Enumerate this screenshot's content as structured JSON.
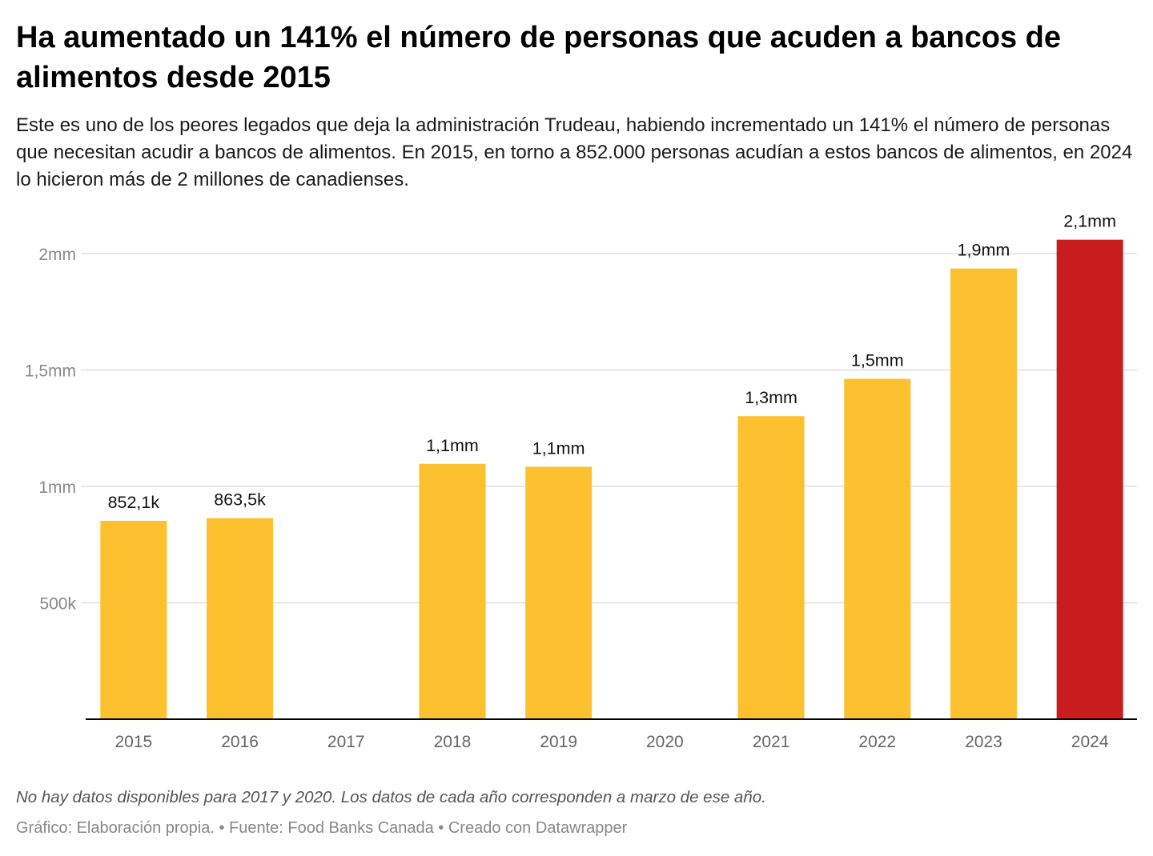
{
  "title": "Ha aumentado un 141% el número de personas que acuden a bancos de alimentos desde 2015",
  "subtitle": "Este es uno de los peores legados que deja la administración Trudeau, habiendo incrementado un 141% el número de personas que necesitan acudir a bancos de alimentos. En 2015, en torno a 852.000 personas acudían a estos bancos de alimentos, en 2024 lo hicieron más de 2 millones de canadienses.",
  "notes": "No hay datos disponibles para 2017 y 2020. Los datos de cada año corresponden a marzo de ese año.",
  "credit": "Gráfico: Elaboración propia. • Fuente: Food Banks Canada • Creado con Datawrapper",
  "chart_data": {
    "type": "bar",
    "title": "Ha aumentado un 141% el número de personas que acuden a bancos de alimentos desde 2015",
    "xlabel": "",
    "ylabel": "",
    "ylim": [
      0,
      2100000
    ],
    "grid": true,
    "yticks": [
      {
        "value": 500000,
        "label": "500k"
      },
      {
        "value": 1000000,
        "label": "1mm"
      },
      {
        "value": 1500000,
        "label": "1,5mm"
      },
      {
        "value": 2000000,
        "label": "2mm"
      }
    ],
    "categories": [
      "2015",
      "2016",
      "2017",
      "2018",
      "2019",
      "2020",
      "2021",
      "2022",
      "2023",
      "2024"
    ],
    "values": [
      852100,
      863500,
      null,
      1096900,
      1084400,
      null,
      1301800,
      1461900,
      1935900,
      2059600
    ],
    "data_labels": [
      "852,1k",
      "863,5k",
      "",
      "1,1mm",
      "1,1mm",
      "",
      "1,3mm",
      "1,5mm",
      "1,9mm",
      "2,1mm"
    ],
    "colors": {
      "default": "#fdc02f",
      "highlight": "#c71e1d",
      "grid": "#e0e0e0",
      "axis": "#000000",
      "tick_label": "#888888"
    },
    "highlight_category": "2024"
  }
}
